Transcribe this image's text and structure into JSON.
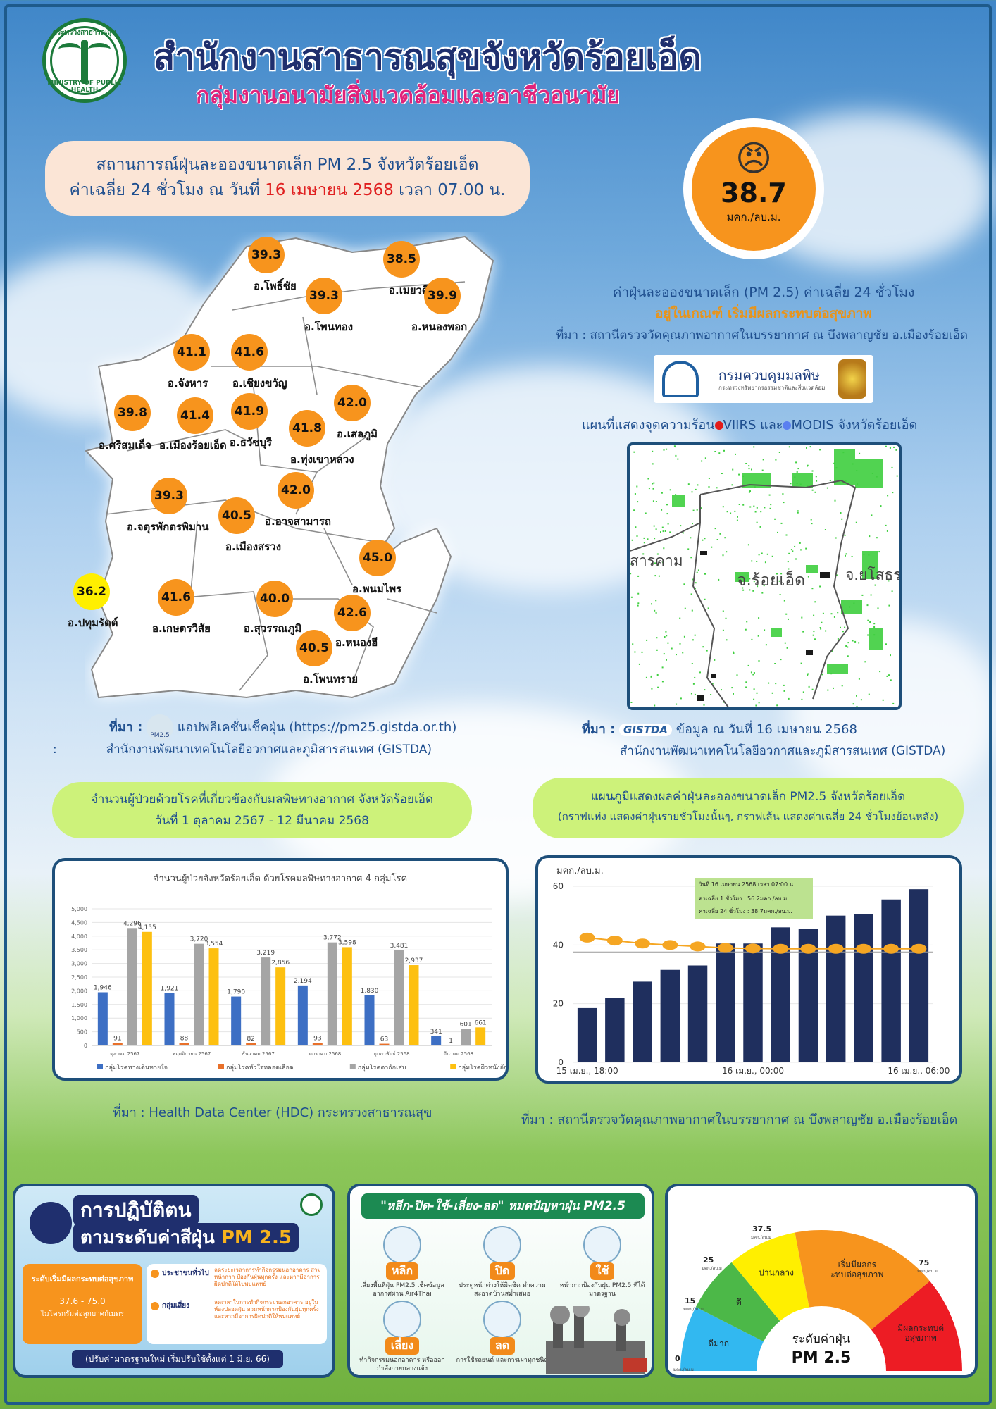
{
  "header": {
    "logo_ring_top": "กระทรวงสาธารณสุข",
    "logo_ring_bottom": "MINISTRY OF PUBLIC HEALTH",
    "title": "สำนักงานสาธารณสุขจังหวัดร้อยเอ็ด",
    "subtitle": "กลุ่มงานอนามัยสิ่งแวดล้อมและอาชีวอนามัย"
  },
  "situation": {
    "line1": "สถานการณ์ฝุ่นละอองขนาดเล็ก PM 2.5 จังหวัดร้อยเอ็ด",
    "line2_prefix": "ค่าเฉลี่ย 24 ชั่วโมง ณ วันที่ ",
    "line2_date": "16 เมษายน 2568",
    "line2_suffix": " เวลา 07.00 น."
  },
  "aqi": {
    "face": "😠",
    "value": "38.7",
    "unit": "มคก./ลบ.ม."
  },
  "aqi_info": {
    "line1": "ค่าฝุ่นละอองขนาดเล็ก (PM 2.5) ค่าเฉลี่ย 24 ชั่วโมง",
    "line2": "อยู่ในเกณฑ์ เริ่มมีผลกระทบต่อสุขภาพ",
    "source": "ที่มา : สถานีตรวจวัดคุณภาพอากาศในบรรยากาศ ณ บึงพลาญชัย อ.เมืองร้อยเอ็ด",
    "pcd_name": "กรมควบคุมมลพิษ",
    "pcd_sub": "กระทรวงทรัพยากรธรรมชาติและสิ่งแวดล้อม"
  },
  "districts": [
    {
      "value": "39.3",
      "name": "อ.โพธิ์ชัย",
      "color": "#f7941d"
    },
    {
      "value": "38.5",
      "name": "อ.เมยวดี",
      "color": "#f7941d"
    },
    {
      "value": "39.3",
      "name": "อ.โพนทอง",
      "color": "#f7941d"
    },
    {
      "value": "39.9",
      "name": "อ.หนองพอก",
      "color": "#f7941d"
    },
    {
      "value": "41.1",
      "name": "อ.จังหาร",
      "color": "#f7941d"
    },
    {
      "value": "41.6",
      "name": "อ.เชียงขวัญ",
      "color": "#f7941d"
    },
    {
      "value": "42.0",
      "name": "อ.เสลภูมิ",
      "color": "#f7941d"
    },
    {
      "value": "39.8",
      "name": "อ.ศรีสมเด็จ",
      "color": "#f7941d"
    },
    {
      "value": "41.4",
      "name": "อ.เมืองร้อยเอ็ด",
      "color": "#f7941d"
    },
    {
      "value": "41.9",
      "name": "อ.ธวัชบุรี",
      "color": "#f7941d"
    },
    {
      "value": "41.8",
      "name": "อ.ทุ่งเขาหลวง",
      "color": "#f7941d"
    },
    {
      "value": "42.0",
      "name": "อ.อาจสามารถ",
      "color": "#f7941d"
    },
    {
      "value": "39.3",
      "name": "อ.จตุรพักตรพิมาน",
      "color": "#f7941d"
    },
    {
      "value": "40.5",
      "name": "อ.เมืองสรวง",
      "color": "#f7941d"
    },
    {
      "value": "45.0",
      "name": "อ.พนมไพร",
      "color": "#f7941d"
    },
    {
      "value": "36.2",
      "name": "อ.ปทุมรัตต์",
      "color": "#ffef00"
    },
    {
      "value": "41.6",
      "name": "อ.เกษตรวิสัย",
      "color": "#f7941d"
    },
    {
      "value": "40.0",
      "name": "อ.สุวรรณภูมิ",
      "color": "#f7941d"
    },
    {
      "value": "42.6",
      "name": "อ.หนองฮี",
      "color": "#f7941d"
    },
    {
      "value": "40.5",
      "name": "อ.โพนทราย",
      "color": "#f7941d"
    }
  ],
  "map_source": {
    "prefix": "ที่มา :",
    "pm_logo": "PM2.5",
    "line1": "แอปพลิเคชั่นเช็คฝุ่น (https://pm25.gistda.or.th)",
    "colon": ":",
    "line2": "สำนักงานพัฒนาเทคโนโลยีอวกาศและภูมิสารสนเทศ (GISTDA)"
  },
  "hotspot": {
    "title_prefix": "แผนที่แสดงจุดความร้อน",
    "viirs": "VIIRS",
    "and": " และ",
    "modis": "MODIS",
    "title_suffix": " จังหวัดร้อยเอ็ด",
    "label_left": "สารคาม",
    "label_center": "จ.ร้อยเอ็ด",
    "label_right": "จ.ยโสธร",
    "source_prefix": "ที่มา :",
    "gistda_logo": "GISTDA",
    "source_line1": "ข้อมูล ณ วันที่ 16 เมษายน 2568",
    "source_line2": "สำนักงานพัฒนาเทคโนโลยีอวกาศและภูมิสารสนเทศ (GISTDA)"
  },
  "patients_pill": {
    "line1": "จำนวนผู้ป่วยด้วยโรคที่เกี่ยวข้องกับมลพิษทางอากาศ จังหวัดร้อยเอ็ด",
    "line2": "วันที่ 1 ตุลาคม 2567 - 12 มีนาคม 2568"
  },
  "graph_pill": {
    "line1": "แผนภูมิแสดงผลค่าฝุ่นละอองขนาดเล็ก PM2.5 จังหวัดร้อยเอ็ด",
    "line2": "(กราฟแท่ง แสดงค่าฝุ่นรายชั่วโมงนั้นๆ, กราฟเส้น แสดงค่าเฉลี่ย 24 ชั่วโมงย้อนหลัง)"
  },
  "patients_source": "ที่มา :  Health Data Center (HDC) กระทรวงสาธารณสุข",
  "pm_source": "ที่มา : สถานีตรวจวัดคุณภาพอากาศในบรรยากาศ ณ บึงพลาญชัย อ.เมืองร้อยเอ็ด",
  "chart_data": [
    {
      "type": "bar",
      "title": "จำนวนผู้ป่วยจังหวัดร้อยเอ็ด ด้วยโรคมลพิษทางอากาศ 4 กลุ่มโรค",
      "categories": [
        "ตุลาคม 2567",
        "พฤศจิกายน 2567",
        "ธันวาคม 2567",
        "มกราคม 2568",
        "กุมภาพันธ์ 2568",
        "มีนาคม 2568"
      ],
      "series": [
        {
          "name": "กลุ่มโรคทางเดินหายใจ",
          "color": "#3d6fc4",
          "values": [
            1946,
            1921,
            1790,
            2194,
            1830,
            341
          ]
        },
        {
          "name": "กลุ่มโรคหัวใจหลอดเลือด",
          "color": "#e8702a",
          "values": [
            91,
            88,
            82,
            93,
            63,
            1
          ]
        },
        {
          "name": "กลุ่มโรคตาอักเสบ",
          "color": "#a5a5a5",
          "values": [
            4296,
            3720,
            3219,
            3772,
            3481,
            601
          ]
        },
        {
          "name": "กลุ่มโรคผิวหนังอักเสบ",
          "color": "#fdc010",
          "values": [
            4155,
            3554,
            2856,
            3598,
            2937,
            661
          ]
        }
      ],
      "ylim": [
        0,
        5000
      ],
      "yticks": [
        "0",
        "500",
        "1,000",
        "1,500",
        "2,000",
        "2,500",
        "3,000",
        "3,500",
        "4,000",
        "4,500",
        "5,000"
      ],
      "legend": "bottom"
    },
    {
      "type": "bar",
      "ylabel": "มคก./ลบ.ม.",
      "ylim": [
        0,
        60
      ],
      "yticks": [
        "0",
        "20",
        "40",
        "60"
      ],
      "x_ticks": [
        "15 เม.ย., 18:00",
        "16 เม.ย., 00:00",
        "16 เม.ย., 06:00"
      ],
      "hourly_values": [
        18.5,
        22,
        27.5,
        31.5,
        33,
        40.5,
        40.5,
        46,
        45.5,
        50,
        50.5,
        55.5,
        59
      ],
      "avg24_values": [
        42.5,
        41.5,
        40.5,
        40,
        39.5,
        39,
        38.8,
        38.7,
        38.7,
        38.7,
        38.7,
        38.7,
        38.7
      ],
      "threshold": 37.5,
      "bar_color": "#1f2f5e",
      "line_color": "#f5a623",
      "tooltip": {
        "row1_label": "วันที่ 16 เมษายน",
        "row1_year": "2568",
        "row1_time": "เวลา 07:00 น.",
        "row2": "ค่าเฉลี่ย 1 ชั่วโมง  :  56.2มคก./ลบ.ม.",
        "row3": "ค่าเฉลี่ย 24 ชั่วโมง  :  38.7มคก./ลบ.ม."
      }
    },
    {
      "type": "gauge",
      "center_label": "ระดับค่าฝุ่น",
      "center_value": "PM 2.5",
      "unit_small": "มคก./ลบ.ม",
      "thresholds": [
        "0",
        "15",
        "25",
        "37.5",
        "75"
      ],
      "segments": [
        {
          "label": "ดีมาก",
          "color": "#32b8f0",
          "from": 0,
          "to": 15
        },
        {
          "label": "ดี",
          "color": "#4cb848",
          "from": 15,
          "to": 25
        },
        {
          "label": "ปานกลาง",
          "color": "#ffef00",
          "from": 25,
          "to": 37.5
        },
        {
          "label": "เริ่มมีผลกระทบต่อสุขภาพ",
          "color": "#f7941d",
          "from": 37.5,
          "to": 75
        },
        {
          "label": "มีผลกระทบต่อสุขภาพ",
          "color": "#ed1c24",
          "from": 75,
          "to": 100
        }
      ]
    }
  ],
  "advice_poster": {
    "title1": "การปฏิบัติตน",
    "title2": "ตามระดับค่าสีฝุ่น",
    "title2_pm": "PM 2.5",
    "level": "ระดับเริ่มมีผลกระทบต่อสุขภาพ",
    "range": "37.6 - 75.0",
    "range_note": "ไมโครกรัมต่อลูกบาศก์เมตร",
    "general": "ประชาชนทั่วไป",
    "general_text": "ลดระยะเวลาการทำกิจกรรมนอกอาคาร สวมหน้ากาก ป้องกันฝุ่นทุกครั้ง และหากมีอาการผิดปกติให้ไปพบแพทย์",
    "risk": "กลุ่มเสี่ยง",
    "risk_text": "ลดเวลาในการทำกิจกรรมนอกอาคาร อยู่ในห้องปลอดฝุ่น สวมหน้ากากป้องกันฝุ่นทุกครั้ง และหากมีอาการผิดปกติให้พบแพทย์",
    "footer": "(ปรับค่ามาตรฐานใหม่ เริ่มปรับใช้ตั้งแต่ 1 มิ.ย. 66)"
  },
  "action_poster": {
    "title": "\"หลีก-ปิด-ใช้-เลี่ยง-ลด\" หมดปัญหาฝุ่น PM2.5",
    "items": [
      {
        "word": "หลีก",
        "desc": "เลี่ยงพื้นที่ฝุ่น PM2.5 เช็คข้อมูลอากาศผ่าน Air4Thai"
      },
      {
        "word": "ปิด",
        "desc": "ประตูหน้าต่างให้มิดชิด ทำความสะอาดบ้านสม่ำเสมอ"
      },
      {
        "word": "ใช้",
        "desc": "หน้ากากป้องกันฝุ่น PM2.5 ที่ได้มาตรฐาน"
      },
      {
        "word": "เลี่ยง",
        "desc": "ทำกิจกรรมนอกอาคาร หรือออกกำลังกายกลางแจ้ง"
      },
      {
        "word": "ลด",
        "desc": "การใช้รถยนต์ และการเผาทุกชนิด"
      }
    ]
  }
}
